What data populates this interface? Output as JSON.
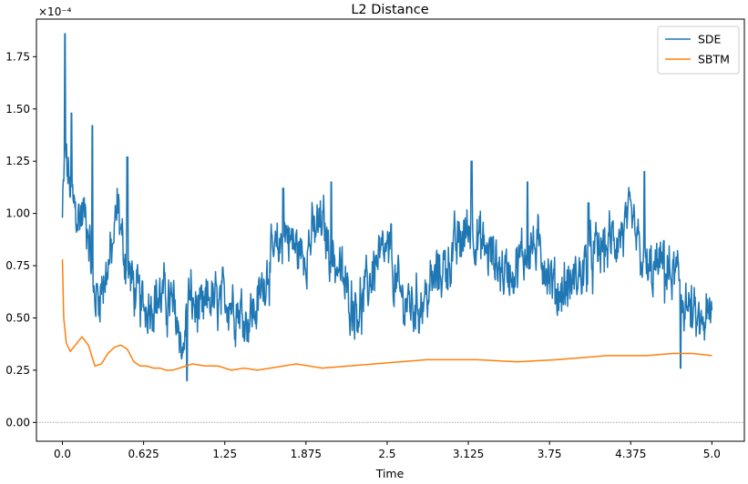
{
  "chart_data": {
    "type": "line",
    "title": "L2 Distance",
    "xlabel": "Time",
    "ylabel": "",
    "y_scale_note": "×10⁻⁴",
    "xlim": [
      -0.2,
      5.25
    ],
    "ylim": [
      -0.09,
      1.93
    ],
    "x_ticks": [
      0.0,
      0.625,
      1.25,
      1.875,
      2.5,
      3.125,
      3.75,
      4.375,
      5.0
    ],
    "x_tick_labels": [
      "0.0",
      "0.625",
      "1.25",
      "1.875",
      "2.5",
      "3.125",
      "3.75",
      "4.375",
      "5.0"
    ],
    "y_ticks": [
      0.0,
      0.25,
      0.5,
      0.75,
      1.0,
      1.25,
      1.5,
      1.75
    ],
    "y_tick_labels": [
      "0.00",
      "0.25",
      "0.50",
      "0.75",
      "1.00",
      "1.25",
      "1.50",
      "1.75"
    ],
    "zero_reference_line": true,
    "legend_position": "top-right",
    "series": [
      {
        "name": "SDE",
        "color": "#1f77b4",
        "noisy": true,
        "x": [
          0.0,
          0.02,
          0.05,
          0.08,
          0.12,
          0.16,
          0.2,
          0.24,
          0.28,
          0.33,
          0.38,
          0.43,
          0.46,
          0.5,
          0.56,
          0.62,
          0.7,
          0.78,
          0.85,
          0.9,
          0.93,
          0.97,
          1.02,
          1.08,
          1.13,
          1.2,
          1.27,
          1.35,
          1.42,
          1.5,
          1.58,
          1.65,
          1.72,
          1.78,
          1.85,
          1.93,
          2.0,
          2.07,
          2.12,
          2.2,
          2.3,
          2.4,
          2.5,
          2.6,
          2.7,
          2.8,
          2.88,
          2.95,
          3.05,
          3.15,
          3.22,
          3.3,
          3.4,
          3.5,
          3.6,
          3.7,
          3.8,
          3.9,
          4.0,
          4.1,
          4.2,
          4.3,
          4.38,
          4.45,
          4.52,
          4.6,
          4.67,
          4.72,
          4.78,
          4.85,
          4.9,
          4.95,
          5.0
        ],
        "values": [
          0.97,
          1.3,
          1.15,
          1.05,
          0.98,
          1.0,
          0.95,
          0.6,
          0.62,
          0.7,
          0.8,
          1.05,
          0.85,
          0.75,
          0.62,
          0.55,
          0.6,
          0.6,
          0.55,
          0.45,
          0.32,
          0.6,
          0.55,
          0.5,
          0.6,
          0.55,
          0.6,
          0.55,
          0.5,
          0.55,
          0.75,
          0.8,
          0.92,
          0.85,
          0.8,
          0.9,
          0.95,
          0.8,
          0.75,
          0.6,
          0.55,
          0.75,
          0.8,
          0.6,
          0.55,
          0.6,
          0.7,
          0.75,
          0.85,
          0.95,
          0.85,
          0.8,
          0.72,
          0.75,
          0.85,
          0.8,
          0.62,
          0.65,
          0.72,
          0.8,
          0.85,
          0.9,
          0.95,
          0.8,
          0.7,
          0.75,
          0.7,
          0.7,
          0.6,
          0.5,
          0.45,
          0.48,
          0.5
        ],
        "peak_x": [
          0.02,
          0.07,
          0.23,
          0.5,
          0.96,
          1.7,
          2.07,
          2.53,
          3.15,
          3.58,
          4.05,
          4.48,
          4.63,
          4.76
        ],
        "peak_values": [
          1.86,
          1.48,
          1.42,
          1.27,
          0.2,
          1.12,
          1.15,
          0.95,
          1.25,
          1.15,
          1.05,
          1.2,
          0.87,
          0.26
        ],
        "volatility": 0.085
      },
      {
        "name": "SBTM",
        "color": "#ff7f0e",
        "noisy": false,
        "x": [
          0.0,
          0.01,
          0.03,
          0.06,
          0.1,
          0.15,
          0.2,
          0.25,
          0.3,
          0.35,
          0.4,
          0.45,
          0.5,
          0.55,
          0.6,
          0.65,
          0.7,
          0.75,
          0.8,
          0.85,
          0.9,
          0.95,
          1.0,
          1.1,
          1.2,
          1.3,
          1.4,
          1.5,
          1.6,
          1.7,
          1.8,
          1.9,
          2.0,
          2.2,
          2.4,
          2.6,
          2.8,
          3.0,
          3.2,
          3.5,
          3.8,
          4.0,
          4.2,
          4.5,
          4.7,
          4.85,
          5.0
        ],
        "values": [
          0.78,
          0.5,
          0.38,
          0.34,
          0.37,
          0.41,
          0.37,
          0.27,
          0.28,
          0.33,
          0.36,
          0.37,
          0.35,
          0.29,
          0.27,
          0.27,
          0.26,
          0.26,
          0.25,
          0.25,
          0.26,
          0.27,
          0.28,
          0.27,
          0.27,
          0.25,
          0.26,
          0.25,
          0.26,
          0.27,
          0.28,
          0.27,
          0.26,
          0.27,
          0.28,
          0.29,
          0.3,
          0.3,
          0.3,
          0.29,
          0.3,
          0.31,
          0.32,
          0.32,
          0.33,
          0.33,
          0.32
        ]
      }
    ]
  }
}
